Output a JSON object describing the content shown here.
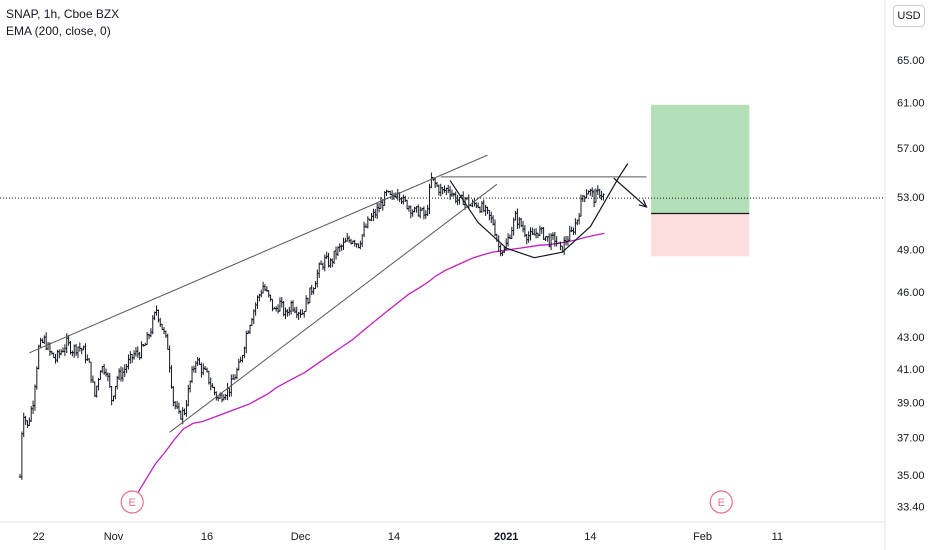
{
  "legend": {
    "symbol": "SNAP, 1h, Cboe BZX",
    "indicator": "EMA (200, close, 0)"
  },
  "currency": "USD",
  "event_markers": [
    {
      "label": "E",
      "x": 12
    },
    {
      "label": "E",
      "x": 75
    }
  ],
  "chart_data": {
    "type": "candlestick",
    "ylim": [
      33.0,
      67.0
    ],
    "y_scale": "log",
    "y_ticks": [
      "65.00",
      "61.00",
      "57.00",
      "53.00",
      "49.00",
      "46.00",
      "43.00",
      "41.00",
      "39.00",
      "37.00",
      "35.00",
      "33.40"
    ],
    "x_ticks": [
      {
        "label": "22",
        "x": 2
      },
      {
        "label": "Nov",
        "x": 10
      },
      {
        "label": "16",
        "x": 20
      },
      {
        "label": "Dec",
        "x": 30
      },
      {
        "label": "14",
        "x": 40
      },
      {
        "label": "2021",
        "x": 52,
        "bold": true
      },
      {
        "label": "14",
        "x": 61
      },
      {
        "label": "Feb",
        "x": 73
      },
      {
        "label": "11",
        "x": 81
      }
    ],
    "last_price": 52.9,
    "price_path": [
      [
        0,
        34.9
      ],
      [
        0.3,
        38.6
      ],
      [
        0.8,
        37.6
      ],
      [
        1.4,
        39.1
      ],
      [
        2.0,
        42.3
      ],
      [
        2.6,
        42.8
      ],
      [
        3.2,
        42.0
      ],
      [
        3.8,
        41.6
      ],
      [
        4.4,
        42.1
      ],
      [
        5.0,
        42.6
      ],
      [
        5.6,
        42.2
      ],
      [
        6.2,
        42.4
      ],
      [
        6.8,
        42.1
      ],
      [
        7.4,
        41.2
      ],
      [
        8.0,
        39.4
      ],
      [
        8.6,
        41.1
      ],
      [
        9.2,
        41.0
      ],
      [
        9.8,
        39.2
      ],
      [
        10.4,
        40.5
      ],
      [
        11.0,
        40.8
      ],
      [
        11.6,
        41.4
      ],
      [
        12.2,
        41.9
      ],
      [
        12.8,
        42.0
      ],
      [
        13.4,
        42.5
      ],
      [
        14.0,
        43.5
      ],
      [
        14.6,
        44.8
      ],
      [
        15.2,
        43.6
      ],
      [
        15.8,
        42.4
      ],
      [
        16.4,
        39.1
      ],
      [
        17.0,
        38.2
      ],
      [
        17.6,
        38.5
      ],
      [
        18.2,
        40.2
      ],
      [
        18.8,
        41.6
      ],
      [
        19.4,
        41.0
      ],
      [
        20.0,
        40.6
      ],
      [
        20.6,
        39.8
      ],
      [
        21.2,
        39.2
      ],
      [
        21.8,
        39.6
      ],
      [
        22.4,
        39.8
      ],
      [
        23.0,
        40.6
      ],
      [
        23.6,
        41.4
      ],
      [
        24.2,
        43.2
      ],
      [
        24.8,
        44.4
      ],
      [
        25.4,
        45.5
      ],
      [
        26.0,
        46.4
      ],
      [
        26.6,
        45.6
      ],
      [
        27.2,
        44.7
      ],
      [
        27.8,
        45.2
      ],
      [
        28.4,
        44.4
      ],
      [
        29.0,
        45.2
      ],
      [
        29.6,
        44.8
      ],
      [
        30.2,
        44.6
      ],
      [
        30.8,
        45.6
      ],
      [
        31.4,
        46.5
      ],
      [
        32.0,
        47.6
      ],
      [
        32.6,
        48.2
      ],
      [
        33.2,
        48.0
      ],
      [
        33.8,
        48.8
      ],
      [
        34.4,
        49.2
      ],
      [
        35.0,
        49.6
      ],
      [
        35.6,
        49.8
      ],
      [
        36.2,
        49.4
      ],
      [
        36.8,
        50.4
      ],
      [
        37.4,
        51.2
      ],
      [
        38.0,
        51.7
      ],
      [
        38.6,
        52.4
      ],
      [
        39.2,
        53.2
      ],
      [
        39.8,
        52.8
      ],
      [
        40.4,
        53.6
      ],
      [
        41.0,
        52.6
      ],
      [
        41.6,
        52.3
      ],
      [
        42.2,
        51.8
      ],
      [
        42.8,
        51.9
      ],
      [
        43.4,
        51.4
      ],
      [
        44.0,
        54.4
      ],
      [
        44.6,
        53.8
      ],
      [
        45.2,
        53.4
      ],
      [
        45.8,
        53.7
      ],
      [
        46.4,
        53.1
      ],
      [
        47.0,
        52.6
      ],
      [
        47.6,
        52.9
      ],
      [
        48.2,
        52.3
      ],
      [
        48.8,
        52.5
      ],
      [
        49.4,
        52.1
      ],
      [
        50.0,
        51.6
      ],
      [
        50.6,
        51.0
      ],
      [
        51.2,
        49.2
      ],
      [
        51.8,
        48.9
      ],
      [
        52.4,
        50.2
      ],
      [
        53.0,
        51.4
      ],
      [
        53.6,
        50.8
      ],
      [
        54.2,
        50.1
      ],
      [
        54.8,
        49.9
      ],
      [
        55.4,
        50.4
      ],
      [
        56.0,
        50.1
      ],
      [
        56.6,
        49.6
      ],
      [
        57.2,
        49.8
      ],
      [
        57.8,
        48.9
      ],
      [
        58.4,
        49.7
      ],
      [
        59.0,
        50.2
      ],
      [
        59.6,
        51.3
      ],
      [
        60.2,
        53.1
      ],
      [
        60.8,
        53.6
      ],
      [
        61.4,
        52.9
      ],
      [
        62.0,
        53.4
      ],
      [
        62.6,
        52.9
      ]
    ],
    "ema_200": [
      [
        11.5,
        33.4
      ],
      [
        12.5,
        34.0
      ],
      [
        13.5,
        34.8
      ],
      [
        14.5,
        35.6
      ],
      [
        15.5,
        36.2
      ],
      [
        16.5,
        36.9
      ],
      [
        17.5,
        37.5
      ],
      [
        18.5,
        37.8
      ],
      [
        19.5,
        37.9
      ],
      [
        20.5,
        38.1
      ],
      [
        21.5,
        38.3
      ],
      [
        22.5,
        38.5
      ],
      [
        23.5,
        38.7
      ],
      [
        24.5,
        38.9
      ],
      [
        25.5,
        39.2
      ],
      [
        26.5,
        39.5
      ],
      [
        27.5,
        39.9
      ],
      [
        28.5,
        40.2
      ],
      [
        29.5,
        40.5
      ],
      [
        30.5,
        40.8
      ],
      [
        31.5,
        41.2
      ],
      [
        32.5,
        41.6
      ],
      [
        33.5,
        42.0
      ],
      [
        34.5,
        42.4
      ],
      [
        35.5,
        42.8
      ],
      [
        36.5,
        43.3
      ],
      [
        37.5,
        43.8
      ],
      [
        38.5,
        44.3
      ],
      [
        39.5,
        44.8
      ],
      [
        40.5,
        45.3
      ],
      [
        41.5,
        45.8
      ],
      [
        42.5,
        46.2
      ],
      [
        43.5,
        46.6
      ],
      [
        44.5,
        47.1
      ],
      [
        45.5,
        47.5
      ],
      [
        46.5,
        47.8
      ],
      [
        47.5,
        48.1
      ],
      [
        48.5,
        48.4
      ],
      [
        49.5,
        48.6
      ],
      [
        50.5,
        48.8
      ],
      [
        51.5,
        48.9
      ],
      [
        52.5,
        49.0
      ],
      [
        53.5,
        49.1
      ],
      [
        54.5,
        49.2
      ],
      [
        55.5,
        49.3
      ],
      [
        56.5,
        49.35
      ],
      [
        57.5,
        49.45
      ],
      [
        58.5,
        49.55
      ],
      [
        59.5,
        49.7
      ],
      [
        60.5,
        49.9
      ],
      [
        61.5,
        50.05
      ],
      [
        62.5,
        50.2
      ]
    ],
    "drawings": {
      "upper_channel": [
        [
          1,
          42.0
        ],
        [
          50,
          56.4
        ]
      ],
      "lower_channel": [
        [
          16,
          37.3
        ],
        [
          51,
          54.0
        ]
      ],
      "resistance": [
        [
          45,
          54.6
        ],
        [
          67,
          54.6
        ]
      ],
      "cup": [
        [
          46,
          54.3
        ],
        [
          49,
          51.0
        ],
        [
          52,
          49.1
        ],
        [
          55,
          48.4
        ],
        [
          58,
          48.8
        ],
        [
          61,
          50.7
        ],
        [
          64,
          54.5
        ],
        [
          65,
          55.7
        ]
      ],
      "arrow": [
        [
          63.5,
          54.5
        ],
        [
          67,
          52.2
        ]
      ]
    },
    "position": {
      "x_start": 67.5,
      "x_end": 78,
      "entry": 51.7,
      "target": 60.8,
      "stop": 48.5,
      "profit_color": "#b2dfb6",
      "loss_color": "#fcdede"
    },
    "colors": {
      "candles": "#131722",
      "ema": "#c020c0",
      "drawings": "#595959",
      "last_price_line": "#131722"
    }
  }
}
